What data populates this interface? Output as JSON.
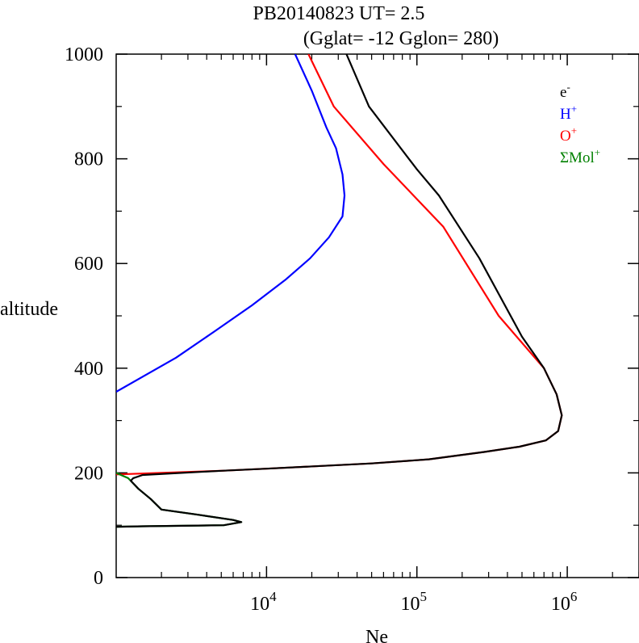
{
  "chart_data": {
    "type": "line",
    "title": "PB20140823   UT=  2.5",
    "subtitle": "(Gglat= -12   Gglon=  280)",
    "xlabel": "Ne",
    "ylabel": "altitude",
    "x_scale": "log",
    "xlim": [
      1000,
      3000000
    ],
    "ylim": [
      0,
      1000
    ],
    "x_ticks": [
      {
        "value": 10000,
        "base": "10",
        "exp": "4"
      },
      {
        "value": 100000,
        "base": "10",
        "exp": "5"
      },
      {
        "value": 1000000,
        "base": "10",
        "exp": "6"
      }
    ],
    "y_ticks": [
      0,
      200,
      400,
      600,
      800,
      1000
    ],
    "grid": false,
    "legend_position": "top-right",
    "series": [
      {
        "name": "e-",
        "label_base": "e",
        "label_sup": "-",
        "color": "#000000",
        "points": [
          [
            34000,
            1000
          ],
          [
            48000,
            900
          ],
          [
            100000,
            780
          ],
          [
            140000,
            730
          ],
          [
            260000,
            610
          ],
          [
            500000,
            460
          ],
          [
            700000,
            400
          ],
          [
            850000,
            350
          ],
          [
            920000,
            310
          ],
          [
            870000,
            280
          ],
          [
            720000,
            262
          ],
          [
            480000,
            250
          ],
          [
            280000,
            240
          ],
          [
            120000,
            226
          ],
          [
            50000,
            218
          ],
          [
            10000,
            208
          ],
          [
            5000,
            204
          ],
          [
            1500,
            196
          ],
          [
            1300,
            190
          ],
          [
            1250,
            185
          ],
          [
            1400,
            170
          ],
          [
            1700,
            150
          ],
          [
            2000,
            130
          ],
          [
            3500,
            120
          ],
          [
            6000,
            110
          ],
          [
            6800,
            106
          ],
          [
            5200,
            100
          ],
          [
            1500,
            98
          ],
          [
            1000,
            97
          ]
        ]
      },
      {
        "name": "H+",
        "label_base": "H",
        "label_sup": "+",
        "color": "#0000ff",
        "points": [
          [
            15500,
            1000
          ],
          [
            20000,
            930
          ],
          [
            25000,
            860
          ],
          [
            29000,
            820
          ],
          [
            32000,
            770
          ],
          [
            33000,
            730
          ],
          [
            32000,
            690
          ],
          [
            26000,
            650
          ],
          [
            19500,
            610
          ],
          [
            13500,
            570
          ],
          [
            8000,
            520
          ],
          [
            4500,
            470
          ],
          [
            2500,
            420
          ],
          [
            1000,
            355
          ]
        ]
      },
      {
        "name": "O+",
        "label_base": "O",
        "label_sup": "+",
        "color": "#ff0000",
        "points": [
          [
            19000,
            1000
          ],
          [
            28000,
            900
          ],
          [
            60000,
            790
          ],
          [
            150000,
            670
          ],
          [
            350000,
            500
          ],
          [
            700000,
            400
          ],
          [
            850000,
            350
          ],
          [
            920000,
            310
          ],
          [
            870000,
            280
          ],
          [
            720000,
            262
          ],
          [
            480000,
            250
          ],
          [
            280000,
            240
          ],
          [
            120000,
            226
          ],
          [
            50000,
            218
          ],
          [
            10000,
            208
          ],
          [
            5000,
            204
          ],
          [
            1000,
            197
          ]
        ]
      },
      {
        "name": "ΣMol+",
        "label_base": "ΣMol",
        "label_sup": "+",
        "color": "#008000",
        "points": [
          [
            1000,
            200
          ],
          [
            1200,
            190
          ],
          [
            1400,
            170
          ],
          [
            1700,
            150
          ],
          [
            2000,
            130
          ],
          [
            3500,
            120
          ],
          [
            6000,
            110
          ],
          [
            6800,
            106
          ],
          [
            5200,
            100
          ],
          [
            1500,
            98
          ],
          [
            1000,
            97
          ]
        ]
      }
    ]
  }
}
